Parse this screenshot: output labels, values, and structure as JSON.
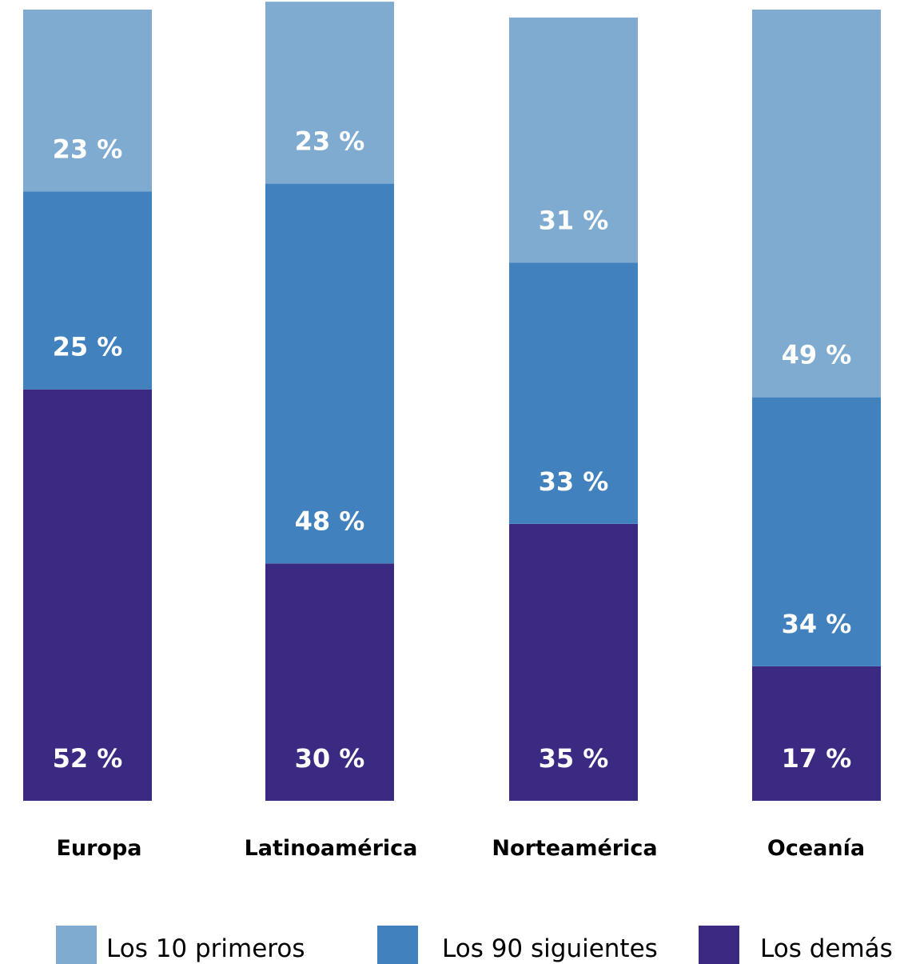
{
  "chart_data": {
    "type": "bar",
    "stacked": true,
    "normalized_percent": true,
    "categories": [
      "Europa",
      "Latinoamérica",
      "Norteamérica",
      "Oceanía"
    ],
    "series": [
      {
        "name": "Los demás",
        "color": "#3c2a82",
        "values": [
          52,
          30,
          35,
          17
        ],
        "labels": [
          "52 %",
          "30 %",
          "35 %",
          "17 %"
        ]
      },
      {
        "name": "Los 90 siguientes",
        "color": "#4181be",
        "values": [
          25,
          48,
          33,
          34
        ],
        "labels": [
          "25 %",
          "48 %",
          "33 %",
          "34 %"
        ]
      },
      {
        "name": "Los 10 primeros",
        "color": "#80abd1",
        "values": [
          23,
          23,
          31,
          49
        ],
        "labels": [
          "23 %",
          "23 %",
          "31 %",
          "49 %"
        ]
      }
    ],
    "legend": {
      "placement": "bottom",
      "order": [
        "Los 10 primeros",
        "Los 90 siguientes",
        "Los demás"
      ]
    },
    "title": "",
    "xlabel": "",
    "ylabel": "",
    "ylim": [
      0,
      100
    ]
  }
}
